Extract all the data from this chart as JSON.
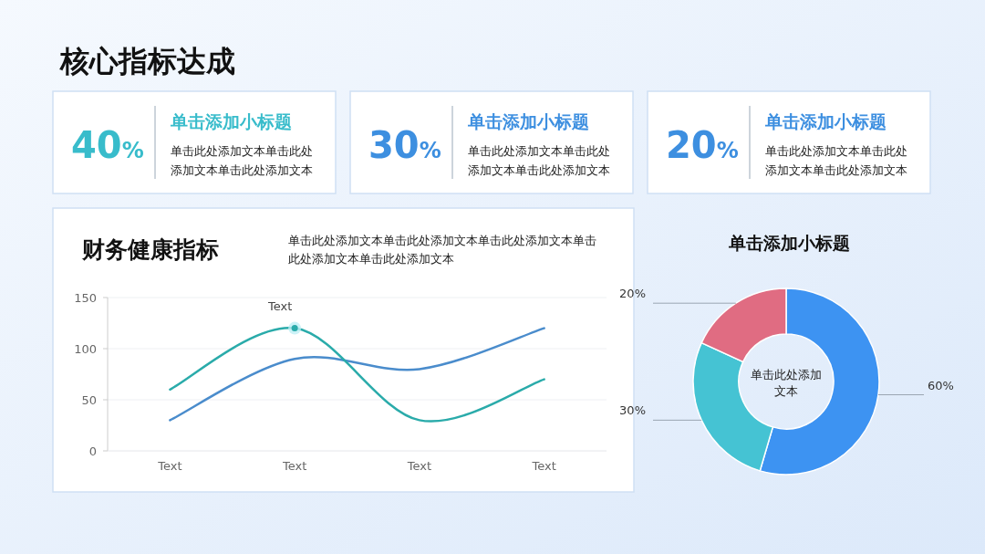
{
  "chart_data": [
    {
      "type": "other",
      "title": "核心指标达成",
      "annotations": [
        "40%",
        "单击添加小标题",
        "单击此处添加文本单击此处添加文本单击此处添加文本",
        "30%",
        "单击添加小标题",
        "单击此处添加文本单击此处添加文本单击此处添加文本",
        "20%",
        "单击添加小标题",
        "单击此处添加文本单击此处添加文本单击此处添加文本"
      ]
    },
    {
      "type": "line",
      "title": "财务健康指标",
      "subtitle": "单击此处添加文本单击此处添加文本单击此处添加文本单击此处添加文本单击此处添加文本",
      "categories": [
        "Text",
        "Text",
        "Text",
        "Text"
      ],
      "series": [
        {
          "color": "#4a8ccc",
          "values": [
            30,
            90,
            80,
            120
          ]
        },
        {
          "color": "#2aabaa",
          "values": [
            60,
            120,
            30,
            70
          ]
        }
      ],
      "ylim": [
        0,
        150
      ],
      "yticks": [
        0,
        50,
        100,
        150
      ],
      "grid": "y",
      "annotations": [
        "Text"
      ]
    },
    {
      "type": "donut",
      "title": "单击添加小标题",
      "categories": [
        null,
        null,
        null
      ],
      "values": [
        60,
        30,
        20
      ],
      "colors": [
        "#3d93f2",
        "#45c3d3",
        "#e06c82"
      ],
      "value_labels": [
        "60%",
        "30%",
        "20%"
      ],
      "annotations": [
        "单击此处添加文本"
      ]
    }
  ]
}
